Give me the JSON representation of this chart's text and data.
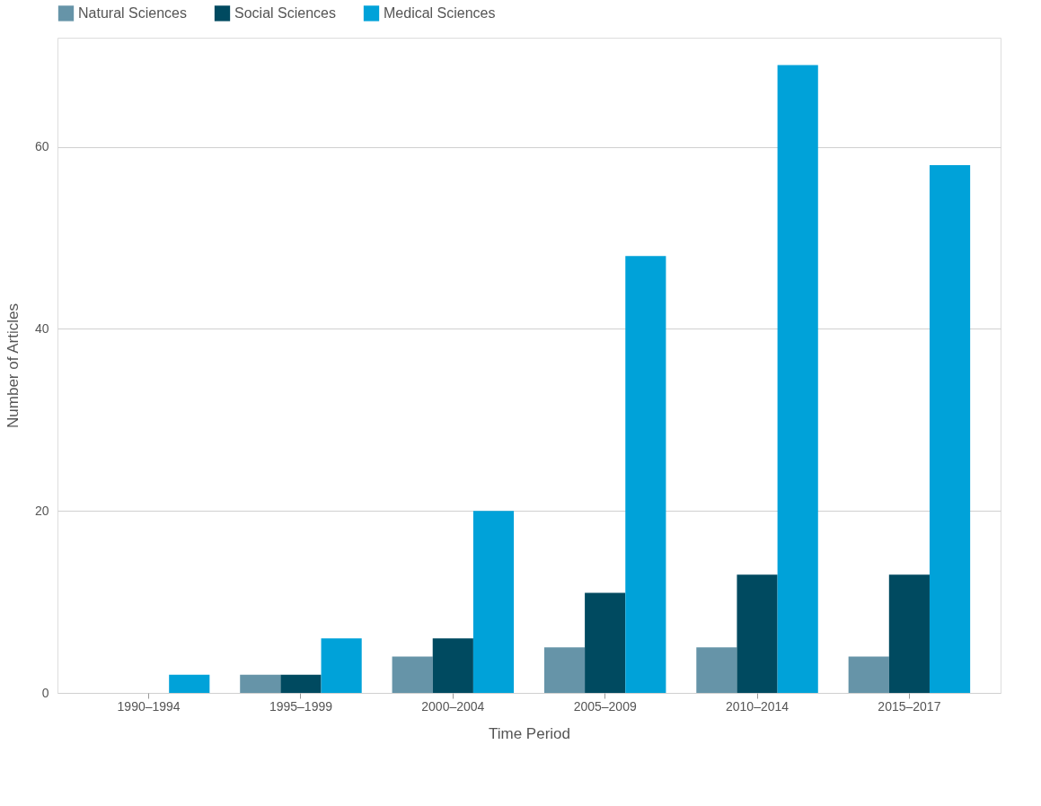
{
  "chart_data": {
    "type": "bar",
    "xlabel": "Time Period",
    "ylabel": "Number of Articles",
    "categories": [
      "1990–1994",
      "1995–1999",
      "2000–2004",
      "2005–2009",
      "2010–2014",
      "2015–2017"
    ],
    "series": [
      {
        "name": "Natural Sciences",
        "color": "#6694a8",
        "values": [
          0,
          2,
          4,
          5,
          5,
          4
        ]
      },
      {
        "name": "Social Sciences",
        "color": "#004a60",
        "values": [
          0,
          2,
          6,
          11,
          13,
          13
        ]
      },
      {
        "name": "Medical Sciences",
        "color": "#00a2d9",
        "values": [
          2,
          6,
          20,
          48,
          69,
          58
        ]
      }
    ],
    "ylim": [
      0,
      72
    ],
    "yticks": [
      0,
      20,
      40,
      60
    ],
    "grid": "y",
    "legend": "top"
  }
}
